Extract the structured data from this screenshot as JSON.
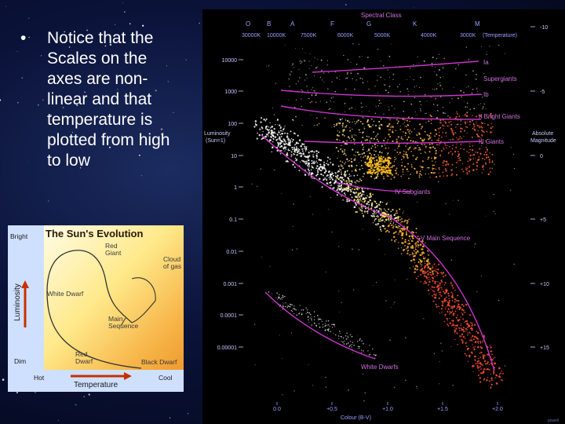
{
  "slide": {
    "bullet_symbol": "•",
    "bullet_text": "Notice that the Scales on the axes are non-linear and that temperature is plotted from high to low"
  },
  "evolution_diagram": {
    "title": "The Sun's Evolution",
    "y_axis_label": "Luminosity",
    "y_top": "Bright",
    "y_bottom": "Dim",
    "x_axis_label": "Temperature",
    "x_left": "Hot",
    "x_right": "Cool",
    "labels": {
      "red_giant": [
        "Red",
        "Giant"
      ],
      "cloud_of_gas": [
        "Cloud",
        "of gas"
      ],
      "white_dwarf": "White Dwarf",
      "main_sequence": [
        "Main",
        "Sequence"
      ],
      "red_dwarf": [
        "Red",
        "Dwarf"
      ],
      "black_dwarf": "Black Dwarf"
    }
  },
  "hr_diagram": {
    "spectral_class_title": "Spectral Class",
    "spectral_classes": [
      "O",
      "B",
      "A",
      "F",
      "G",
      "K",
      "M"
    ],
    "temperatures": [
      "30000K",
      "10000K",
      "7500K",
      "6000K",
      "5000K",
      "4000K",
      "3000K"
    ],
    "temperature_caption": "(Temperature)",
    "luminosity_label": [
      "Luminosity",
      "(Sun=1)"
    ],
    "luminosity_ticks": [
      "10000",
      "1000",
      "100",
      "10",
      "1",
      "0.1",
      "0.01",
      "0.001",
      "0.0001",
      "0.00001"
    ],
    "magnitude_label": [
      "Absolute",
      "Magnitude"
    ],
    "magnitude_ticks": [
      "-10",
      "-5",
      "0",
      "+5",
      "+10",
      "+15"
    ],
    "colour_ticks": [
      "0.0",
      "+0.5",
      "+1.0",
      "+1.5",
      "+2.0"
    ],
    "colour_label": "Colour (B-V)",
    "classes": {
      "ia": "Ia",
      "supergiants": "Supergiants",
      "ib": "Ib",
      "bright_giants": "II Bright Giants",
      "giants": "III Giants",
      "subgiants": "IV Subgiants",
      "main_sequence": "V Main Sequence",
      "white_dwarfs": "White Dwarfs"
    },
    "credit": "powell"
  },
  "colors": {
    "accent_magenta": "#cc33cc",
    "label_pink": "#d070e0",
    "hot_stars": "#ffffff",
    "sun_yellow": "#ffd21e",
    "cool_red": "#ff5030"
  }
}
